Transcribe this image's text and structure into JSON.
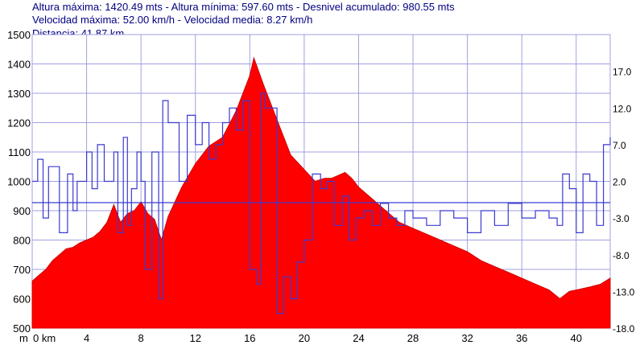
{
  "stats": {
    "line1": "Altura máxima: 1420.49 mts - Altura mínima: 597.60 mts - Desnivel acumulado: 980.55 mts",
    "line2": "Velocidad máxima: 52.00 km/h - Velocidad media: 8.27 km/h",
    "line3": "Distancia: 41.87 km"
  },
  "colors": {
    "elevation_fill": "#ff0000",
    "speed_line": "#3a3ad0",
    "grid": "#a0a0e0",
    "text": "#000080"
  },
  "chart_data": {
    "type": "area",
    "title": "",
    "xlabel": "km",
    "ylabel": "m",
    "xlim": [
      0,
      42.5
    ],
    "ylim": [
      500,
      1500
    ],
    "x_ticks": [
      0,
      4,
      8,
      12,
      16,
      20,
      24,
      28,
      32,
      36,
      40
    ],
    "x_tick_labels": [
      "0 km",
      "4",
      "8",
      "12",
      "16",
      "20",
      "24",
      "28",
      "32",
      "36",
      "40"
    ],
    "y_ticks": [
      500,
      600,
      700,
      800,
      900,
      1000,
      1100,
      1200,
      1300,
      1400,
      1500
    ],
    "y2lim": [
      -18,
      22
    ],
    "y2_ticks": [
      -18,
      -13,
      -8,
      -3,
      2,
      7,
      12,
      17
    ],
    "y2_tick_labels": [
      "-18.0",
      "-13.0",
      "-8.0",
      "-3.0",
      "2.0",
      "7.0",
      "12.0",
      "17.0"
    ],
    "grid": true,
    "series": [
      {
        "kind": "area",
        "axis": "left",
        "x": [
          0,
          0.5,
          1,
          1.5,
          2,
          2.5,
          3,
          3.5,
          4,
          4.5,
          5,
          5.5,
          6,
          6.5,
          7,
          7.5,
          8,
          8.5,
          9,
          9.5,
          10,
          11,
          12,
          13,
          14,
          15,
          16,
          16.3,
          17,
          18,
          19,
          20,
          20.8,
          21.5,
          22,
          22.5,
          23,
          23.5,
          24,
          25,
          26,
          27,
          28,
          29,
          30,
          31,
          32,
          33,
          34,
          35,
          36,
          37,
          38,
          38.8,
          39.5,
          40,
          41,
          41.8,
          42.5
        ],
        "values": [
          660,
          680,
          700,
          730,
          750,
          770,
          775,
          790,
          800,
          810,
          830,
          860,
          920,
          860,
          890,
          900,
          930,
          890,
          870,
          800,
          880,
          980,
          1060,
          1120,
          1150,
          1240,
          1360,
          1420,
          1330,
          1210,
          1090,
          1040,
          1000,
          1010,
          1010,
          1020,
          1030,
          1010,
          980,
          940,
          900,
          860,
          840,
          820,
          800,
          780,
          760,
          730,
          710,
          690,
          670,
          650,
          630,
          600,
          625,
          630,
          640,
          650,
          670
        ]
      },
      {
        "kind": "step",
        "axis": "right",
        "x": [
          0,
          0.4,
          0.8,
          1.2,
          2,
          2.6,
          3,
          3.3,
          4,
          4.4,
          4.8,
          5.3,
          6,
          6.3,
          6.7,
          7,
          7.3,
          7.7,
          8,
          8.3,
          8.8,
          9.3,
          9.6,
          10,
          10.8,
          11.4,
          12,
          12.5,
          13,
          13.5,
          14,
          14.5,
          15,
          15.5,
          16,
          16.5,
          16.8,
          17.1,
          18,
          18.5,
          19,
          19.5,
          20,
          20.6,
          21.2,
          21.7,
          22.2,
          22.8,
          23.3,
          23.8,
          24.4,
          25,
          25.6,
          26.2,
          26.8,
          27.4,
          28,
          29,
          30,
          31,
          32,
          33,
          34,
          35,
          36,
          37,
          38,
          38.6,
          39,
          39.5,
          40,
          40.5,
          41,
          41.5,
          42,
          42.5
        ],
        "values": [
          2,
          5,
          -3,
          4,
          -5,
          3,
          -2,
          2,
          6,
          1,
          7,
          2,
          6,
          -5,
          8,
          -4,
          1,
          6,
          2,
          -10,
          6,
          -14,
          13,
          10,
          2,
          11,
          7,
          10,
          5,
          7,
          10,
          12,
          9,
          13,
          -10,
          -12,
          14,
          12,
          -16,
          -11,
          -14,
          -9,
          -6,
          3,
          1,
          2,
          -4,
          0,
          -6,
          -3,
          -2,
          -4,
          -1,
          -3,
          -4,
          -2,
          -3,
          -4,
          -2,
          -3,
          -5,
          -2,
          -4,
          -1,
          -3,
          -2,
          -3,
          -4,
          3,
          1,
          -5,
          3,
          2,
          -4,
          7,
          8
        ]
      },
      {
        "kind": "hline",
        "axis": "right",
        "name": "",
        "value": -0.9
      }
    ]
  }
}
